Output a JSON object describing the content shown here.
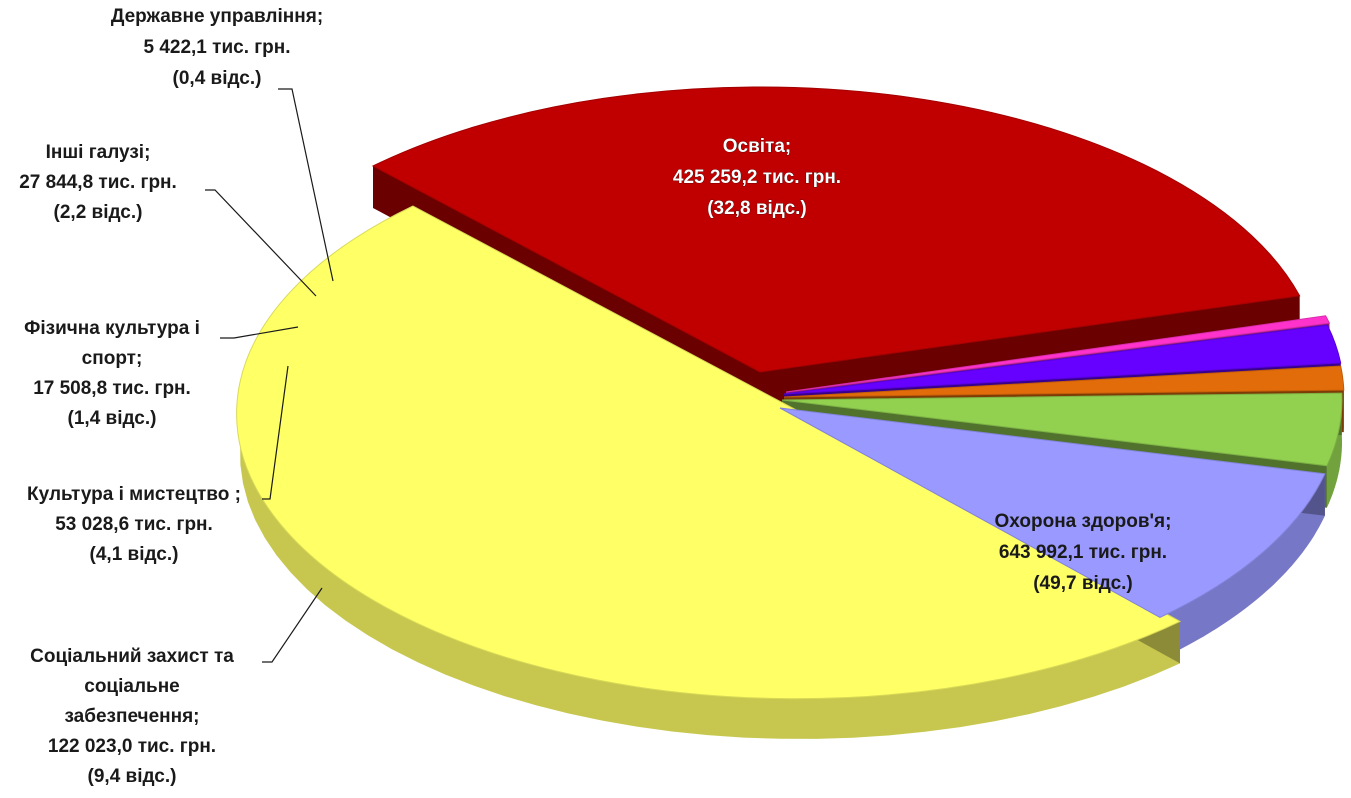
{
  "chart_data": {
    "type": "pie",
    "slices": [
      {
        "key": "osvita",
        "lines": [
          "Освіта;",
          "425 259,2 тис. грн.",
          "(32,8 відс.)"
        ],
        "value": 425259.2,
        "percent": 32.8,
        "color": "#c00000"
      },
      {
        "key": "okhorona",
        "lines": [
          "Охорона здоров'я;",
          "643 992,1 тис. грн.",
          "(49,7 відс.)"
        ],
        "value": 643992.1,
        "percent": 49.7,
        "color": "#ffff66"
      },
      {
        "key": "sotsialnyi",
        "lines": [
          "Соціальний  захист та",
          "соціальне",
          "забезпечення;",
          "122 023,0 тис. грн.",
          "(9,4 відс.)"
        ],
        "value": 122023.0,
        "percent": 9.4,
        "color": "#9999ff"
      },
      {
        "key": "kultura",
        "lines": [
          "Культура і мистецтво ;",
          "53 028,6 тис. грн.",
          "(4,1 відс.)"
        ],
        "value": 53028.6,
        "percent": 4.1,
        "color": "#92d050"
      },
      {
        "key": "fizychna",
        "lines": [
          "Фізична культура і",
          "спорт;",
          "17 508,8 тис. грн.",
          "(1,4 відс.)"
        ],
        "value": 17508.8,
        "percent": 1.4,
        "color": "#e36c0a"
      },
      {
        "key": "inshi",
        "lines": [
          "Інші галузі;",
          "27 844,8 тис. грн.",
          "(2,2 відс.)"
        ],
        "value": 27844.8,
        "percent": 2.2,
        "color": "#6600ff"
      },
      {
        "key": "derzhavne",
        "lines": [
          "Державне управління;",
          "5 422,1 тис. грн.",
          "(0,4 відс.)"
        ],
        "value": 5422.1,
        "percent": 0.4,
        "color": "#ff33cc"
      }
    ]
  }
}
